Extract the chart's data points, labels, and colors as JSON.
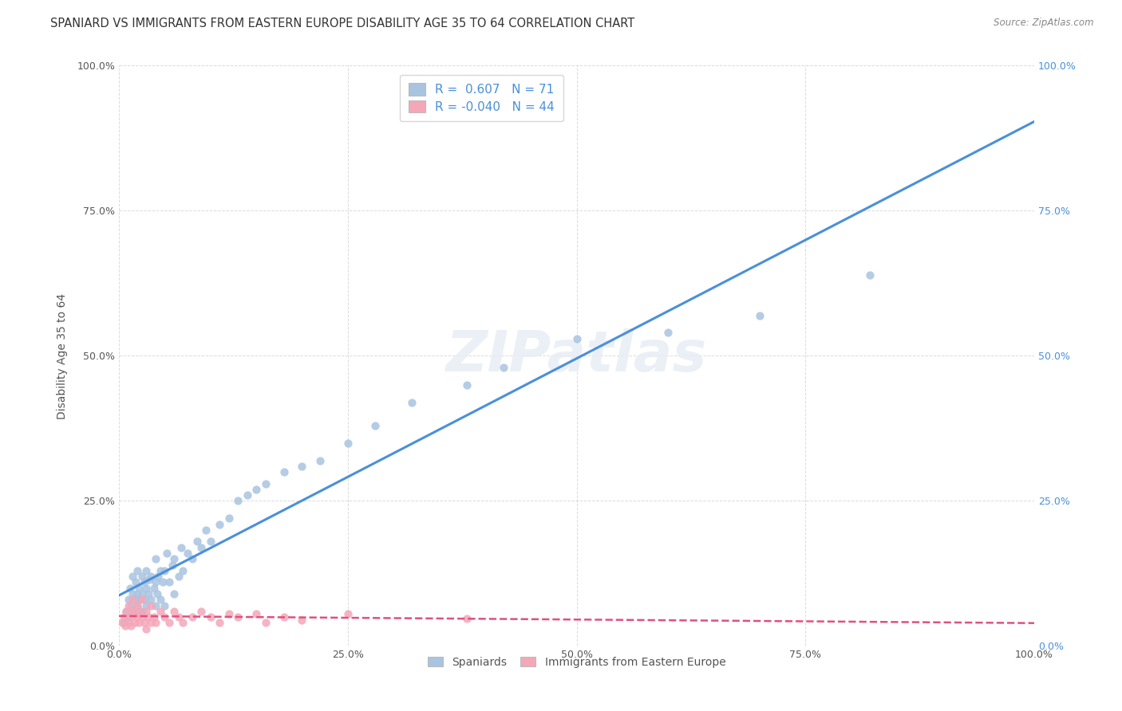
{
  "title": "SPANIARD VS IMMIGRANTS FROM EASTERN EUROPE DISABILITY AGE 35 TO 64 CORRELATION CHART",
  "source": "Source: ZipAtlas.com",
  "ylabel": "Disability Age 35 to 64",
  "xlim": [
    0,
    1.0
  ],
  "ylim": [
    0,
    1.0
  ],
  "ytick_values": [
    0.0,
    0.25,
    0.5,
    0.75,
    1.0
  ],
  "ytick_labels": [
    "0.0%",
    "25.0%",
    "50.0%",
    "75.0%",
    "100.0%"
  ],
  "xtick_values": [
    0.0,
    0.25,
    0.5,
    0.75,
    1.0
  ],
  "xtick_labels": [
    "0.0%",
    "25.0%",
    "50.0%",
    "75.0%",
    "100.0%"
  ],
  "grid_color": "#cccccc",
  "background_color": "#ffffff",
  "spaniards": {
    "R": 0.607,
    "N": 71,
    "color": "#a8c4e0",
    "line_color": "#4a90d9",
    "x": [
      0.005,
      0.008,
      0.01,
      0.01,
      0.012,
      0.013,
      0.015,
      0.015,
      0.015,
      0.018,
      0.018,
      0.02,
      0.02,
      0.02,
      0.022,
      0.022,
      0.025,
      0.025,
      0.025,
      0.028,
      0.028,
      0.03,
      0.03,
      0.03,
      0.032,
      0.033,
      0.035,
      0.035,
      0.038,
      0.04,
      0.04,
      0.04,
      0.042,
      0.043,
      0.045,
      0.045,
      0.048,
      0.05,
      0.05,
      0.052,
      0.055,
      0.058,
      0.06,
      0.06,
      0.065,
      0.068,
      0.07,
      0.075,
      0.08,
      0.085,
      0.09,
      0.095,
      0.1,
      0.11,
      0.12,
      0.13,
      0.14,
      0.15,
      0.16,
      0.18,
      0.2,
      0.22,
      0.25,
      0.28,
      0.32,
      0.38,
      0.42,
      0.5,
      0.6,
      0.7,
      0.82
    ],
    "y": [
      0.04,
      0.06,
      0.05,
      0.08,
      0.1,
      0.07,
      0.06,
      0.09,
      0.12,
      0.08,
      0.11,
      0.07,
      0.09,
      0.13,
      0.08,
      0.1,
      0.06,
      0.09,
      0.12,
      0.08,
      0.11,
      0.07,
      0.1,
      0.13,
      0.09,
      0.115,
      0.08,
      0.12,
      0.1,
      0.07,
      0.11,
      0.15,
      0.09,
      0.12,
      0.08,
      0.13,
      0.11,
      0.07,
      0.13,
      0.16,
      0.11,
      0.14,
      0.09,
      0.15,
      0.12,
      0.17,
      0.13,
      0.16,
      0.15,
      0.18,
      0.17,
      0.2,
      0.18,
      0.21,
      0.22,
      0.25,
      0.26,
      0.27,
      0.28,
      0.3,
      0.31,
      0.32,
      0.35,
      0.38,
      0.42,
      0.45,
      0.48,
      0.53,
      0.54,
      0.57,
      0.64
    ]
  },
  "immigrants": {
    "R": -0.04,
    "N": 44,
    "color": "#f4a7b9",
    "line_color": "#e05080",
    "x": [
      0.003,
      0.005,
      0.007,
      0.008,
      0.01,
      0.01,
      0.012,
      0.013,
      0.015,
      0.015,
      0.017,
      0.018,
      0.02,
      0.02,
      0.022,
      0.023,
      0.025,
      0.025,
      0.028,
      0.03,
      0.03,
      0.032,
      0.035,
      0.035,
      0.038,
      0.04,
      0.045,
      0.05,
      0.055,
      0.06,
      0.065,
      0.07,
      0.08,
      0.09,
      0.1,
      0.11,
      0.12,
      0.13,
      0.15,
      0.16,
      0.18,
      0.2,
      0.25,
      0.38
    ],
    "y": [
      0.04,
      0.05,
      0.035,
      0.06,
      0.04,
      0.07,
      0.05,
      0.035,
      0.06,
      0.08,
      0.04,
      0.055,
      0.05,
      0.07,
      0.04,
      0.06,
      0.05,
      0.08,
      0.04,
      0.03,
      0.06,
      0.05,
      0.04,
      0.07,
      0.05,
      0.04,
      0.06,
      0.05,
      0.04,
      0.06,
      0.05,
      0.04,
      0.05,
      0.06,
      0.05,
      0.04,
      0.055,
      0.05,
      0.055,
      0.04,
      0.05,
      0.045,
      0.055,
      0.048
    ]
  },
  "right_ytick_color": "#4a90d9",
  "title_fontsize": 10.5,
  "axis_label_fontsize": 10,
  "tick_fontsize": 9,
  "legend_R_N_color": "#4a90d9"
}
